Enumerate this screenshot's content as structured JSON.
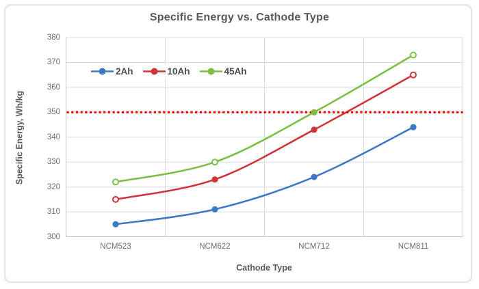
{
  "window": {
    "background": "#FFFFFF",
    "frame_border_color": "#E2E2E2"
  },
  "colors": {
    "gridline": "#D9D9D9",
    "axis_line": "#C3C3C3",
    "title_text": "#595959",
    "tick_text": "#6E6E6E"
  },
  "chart_data": {
    "type": "line",
    "line_shape": "smooth",
    "title": "Specific Energy vs. Cathode Type",
    "xlabel": "Cathode Type",
    "ylabel": "Specific Energy, Wh/kg",
    "categories": [
      "NCM523",
      "NCM622",
      "NCM712",
      "NCM811"
    ],
    "series": [
      {
        "name": "2Ah",
        "color": "#3E79C5",
        "values": [
          305,
          311,
          324,
          344
        ],
        "markers": [
          "filled",
          "filled",
          "filled",
          "filled"
        ]
      },
      {
        "name": "10Ah",
        "color": "#CE3439",
        "values": [
          315,
          323,
          343,
          365
        ],
        "markers": [
          "open",
          "filled",
          "filled",
          "open"
        ]
      },
      {
        "name": "45Ah",
        "color": "#7DBE45",
        "values": [
          322,
          330,
          350,
          373
        ],
        "markers": [
          "open",
          "open",
          "filled",
          "open"
        ]
      }
    ],
    "reference_line": {
      "value": 350,
      "color": "#FF0000",
      "style": "dotted"
    },
    "ylim": [
      300,
      380
    ],
    "yticks": [
      300,
      310,
      320,
      330,
      340,
      350,
      360,
      370,
      380
    ],
    "grid": true,
    "legend_position": "inside-top-left"
  }
}
